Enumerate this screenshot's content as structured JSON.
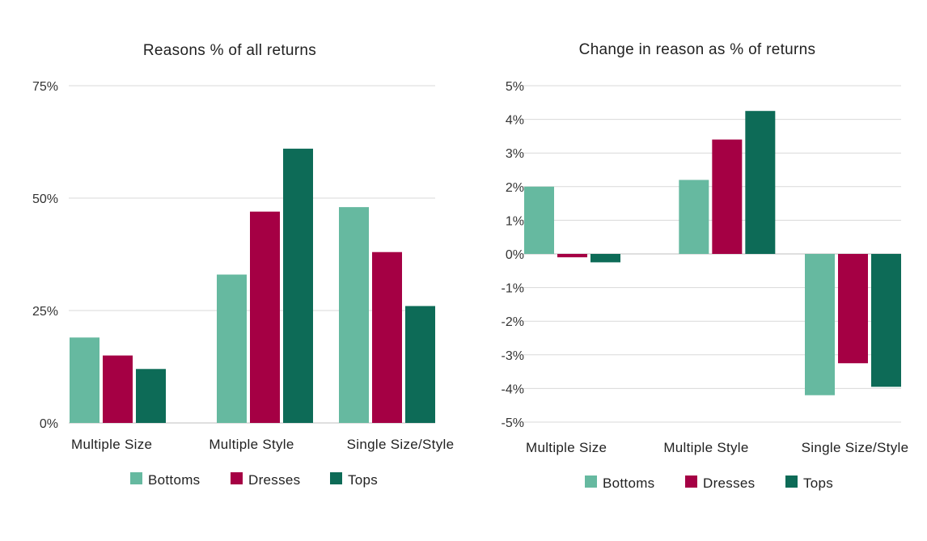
{
  "chart_data": [
    {
      "type": "bar",
      "title": "Reasons % of all returns",
      "categories": [
        "Multiple Size",
        "Multiple Style",
        "Single Size/Style"
      ],
      "series": [
        {
          "name": "Bottoms",
          "color": "#66b9a0",
          "values": [
            19,
            33,
            48
          ]
        },
        {
          "name": "Dresses",
          "color": "#a50044",
          "values": [
            15,
            47,
            38
          ]
        },
        {
          "name": "Tops",
          "color": "#0d6b57",
          "values": [
            12,
            61,
            26
          ]
        }
      ],
      "ylim": [
        0,
        75
      ],
      "yticks": [
        0,
        25,
        50,
        75
      ],
      "ytick_labels": [
        "0%",
        "25%",
        "50%",
        "75%"
      ],
      "grid": true,
      "legend": "bottom"
    },
    {
      "type": "bar",
      "title": "Change in reason as % of returns",
      "categories": [
        "Multiple Size",
        "Multiple Style",
        "Single Size/Style"
      ],
      "series": [
        {
          "name": "Bottoms",
          "color": "#66b9a0",
          "values": [
            2.0,
            2.2,
            -4.2
          ]
        },
        {
          "name": "Dresses",
          "color": "#a50044",
          "values": [
            -0.1,
            3.4,
            -3.25
          ]
        },
        {
          "name": "Tops",
          "color": "#0d6b57",
          "values": [
            -0.25,
            4.25,
            -3.95
          ]
        }
      ],
      "ylim": [
        -5,
        5
      ],
      "yticks": [
        5,
        4,
        3,
        2,
        1,
        0,
        -1,
        -2,
        -3,
        -4,
        -5
      ],
      "ytick_labels": [
        "5%",
        "4%",
        "3%",
        "2%",
        "1%",
        "0%",
        "-1%",
        "-2%",
        "-3%",
        "-4%",
        "-5%"
      ],
      "grid": true,
      "legend": "bottom"
    }
  ]
}
